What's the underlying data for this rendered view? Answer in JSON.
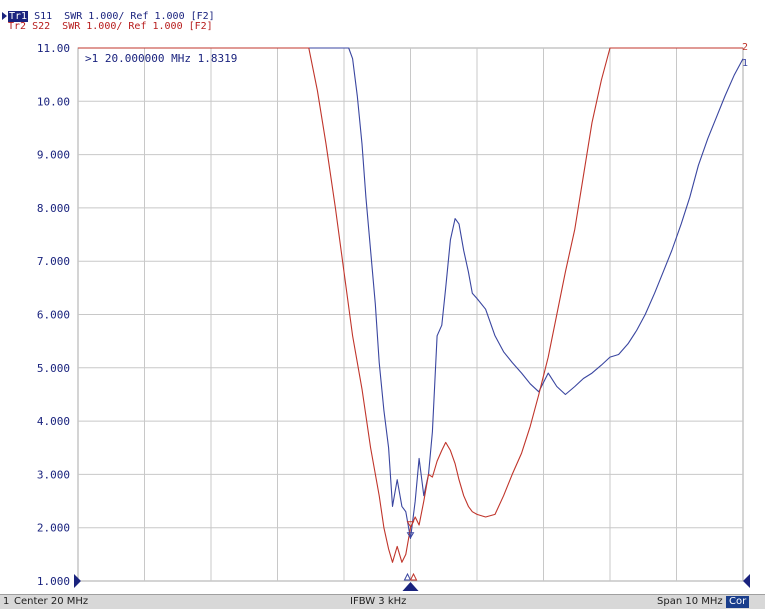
{
  "header": {
    "tr1": {
      "name": "Tr1",
      "text": " S11  SWR 1.000/ Ref 1.000 [F2]"
    },
    "tr2": {
      "name": "Tr2",
      "text": " S22  SWR 1.000/ Ref 1.000 [F2]"
    }
  },
  "marker": {
    "readout": ">1  20.000000 MHz  1.8319"
  },
  "statusbar": {
    "channel": "1",
    "center": "Center 20 MHz",
    "ifbw": "IFBW 3 kHz",
    "span": "Span 10 MHz",
    "cor": "Cor"
  },
  "colors": {
    "tr1": "#3a46a0",
    "tr2": "#c0352b",
    "grid": "#c8c8c8",
    "axis": "#1a237e",
    "text": "#1a237e"
  },
  "chart_data": {
    "type": "line",
    "ytick_labels": [
      "11.00",
      "10.00",
      "9.000",
      "8.000",
      "7.000",
      "6.000",
      "5.000",
      "4.000",
      "3.000",
      "2.000",
      "1.000"
    ],
    "ylim": [
      1,
      11
    ],
    "xlim": [
      15,
      25
    ],
    "x_unit": "MHz",
    "grid": true,
    "trace_end_labels": [
      "2",
      "1"
    ],
    "series": [
      {
        "name": "S11",
        "color": "#3a46a0",
        "x": [
          15.0,
          17.73,
          17.87,
          18.0,
          18.13,
          18.27,
          18.4,
          18.47,
          18.53,
          18.6,
          18.67,
          18.73,
          18.8,
          18.87,
          18.93,
          19.0,
          19.07,
          19.13,
          19.2,
          19.27,
          19.33,
          19.4,
          19.47,
          19.53,
          19.6,
          19.67,
          19.73,
          19.8,
          19.87,
          19.93,
          20.0,
          20.07,
          20.13,
          20.2,
          20.27,
          20.33,
          20.4,
          20.47,
          20.53,
          20.6,
          20.67,
          20.73,
          20.8,
          20.87,
          20.93,
          21.0,
          21.13,
          21.27,
          21.4,
          21.53,
          21.67,
          21.8,
          21.93,
          22.07,
          22.2,
          22.33,
          22.47,
          22.6,
          22.73,
          22.87,
          23.0,
          23.13,
          23.27,
          23.4,
          23.53,
          23.67,
          23.8,
          23.93,
          24.07,
          24.2,
          24.33,
          24.47,
          24.6,
          24.73,
          24.87,
          25.0
        ],
        "y": [
          11.0,
          11.0,
          11.0,
          11.0,
          11.0,
          11.0,
          11.0,
          11.0,
          11.0,
          11.0,
          11.0,
          11.0,
          11.0,
          11.0,
          11.0,
          11.0,
          11.0,
          10.8,
          10.1,
          9.2,
          8.2,
          7.2,
          6.2,
          5.1,
          4.2,
          3.5,
          2.4,
          2.9,
          2.4,
          2.3,
          1.8,
          2.5,
          3.3,
          2.6,
          3.0,
          3.8,
          5.6,
          5.8,
          6.5,
          7.4,
          7.8,
          7.7,
          7.2,
          6.8,
          6.4,
          6.3,
          6.1,
          5.6,
          5.3,
          5.1,
          4.9,
          4.7,
          4.55,
          4.9,
          4.65,
          4.5,
          4.65,
          4.8,
          4.9,
          5.05,
          5.2,
          5.25,
          5.45,
          5.7,
          6.0,
          6.4,
          6.8,
          7.2,
          7.7,
          8.2,
          8.8,
          9.3,
          9.7,
          10.1,
          10.5,
          10.8
        ]
      },
      {
        "name": "S22",
        "color": "#c0352b",
        "x": [
          15.0,
          17.13,
          17.27,
          17.4,
          17.53,
          17.67,
          17.8,
          17.93,
          18.07,
          18.2,
          18.33,
          18.47,
          18.6,
          18.73,
          18.87,
          19.0,
          19.13,
          19.27,
          19.4,
          19.53,
          19.6,
          19.67,
          19.73,
          19.8,
          19.87,
          19.93,
          20.0,
          20.07,
          20.13,
          20.2,
          20.27,
          20.33,
          20.4,
          20.47,
          20.53,
          20.6,
          20.67,
          20.73,
          20.8,
          20.87,
          20.93,
          21.0,
          21.13,
          21.27,
          21.4,
          21.53,
          21.67,
          21.8,
          21.93,
          22.07,
          22.2,
          22.33,
          22.47,
          22.6,
          22.73,
          22.87,
          23.0,
          23.13,
          23.27,
          25.0
        ],
        "y": [
          11.0,
          11.0,
          11.0,
          11.0,
          11.0,
          11.0,
          11.0,
          11.0,
          11.0,
          11.0,
          11.0,
          11.0,
          10.2,
          9.2,
          8.0,
          6.8,
          5.6,
          4.6,
          3.5,
          2.6,
          2.0,
          1.6,
          1.35,
          1.65,
          1.35,
          1.5,
          2.0,
          2.2,
          2.05,
          2.5,
          3.0,
          2.95,
          3.25,
          3.45,
          3.6,
          3.45,
          3.2,
          2.9,
          2.6,
          2.4,
          2.3,
          2.25,
          2.2,
          2.25,
          2.6,
          3.0,
          3.4,
          3.9,
          4.5,
          5.2,
          6.0,
          6.8,
          7.6,
          8.6,
          9.6,
          10.4,
          11.0,
          11.0,
          11.0,
          11.0
        ]
      }
    ]
  }
}
